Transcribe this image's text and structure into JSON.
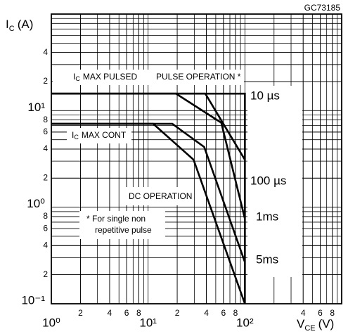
{
  "chart_data": {
    "type": "line",
    "code": "GC73185",
    "y_label": {
      "symbol": "I",
      "subscript": "C",
      "unit": "(A)"
    },
    "x_label": {
      "symbol": "V",
      "subscript": "CE",
      "unit": "(V)"
    },
    "log_x": true,
    "log_y": true,
    "minor_grid": true,
    "xlim": [
      1,
      1000
    ],
    "ylim": [
      0.1,
      100
    ],
    "xticks": [
      {
        "value": 1,
        "label": "10⁰"
      },
      2,
      4,
      6,
      8,
      {
        "value": 10,
        "label": "10¹"
      },
      {
        "value": 20,
        "label": "2"
      },
      {
        "value": 40,
        "label": "4"
      },
      {
        "value": 60,
        "label": "6"
      },
      {
        "value": 80,
        "label": "8"
      },
      {
        "value": 100,
        "label": "10²"
      },
      {
        "value": 400,
        "label": "4"
      },
      {
        "value": 600,
        "label": "6"
      },
      {
        "value": 800,
        "label": "8"
      }
    ],
    "yticks": [
      {
        "value": 0.1,
        "label": "10⁻¹"
      },
      {
        "value": 0.2,
        "label": "2"
      },
      {
        "value": 0.4,
        "label": "4"
      },
      {
        "value": 0.6,
        "label": "6"
      },
      {
        "value": 0.8,
        "label": "8"
      },
      {
        "value": 1,
        "label": "10⁰"
      },
      2,
      4,
      6,
      8,
      {
        "value": 10,
        "label": "10¹"
      },
      {
        "value": 20,
        "label": "2"
      },
      {
        "value": 40,
        "label": "4"
      }
    ],
    "annotations": [
      "PULSE OPERATION *",
      "* For single non",
      "repetitive pulse"
    ],
    "limit_labels": [
      {
        "symbol": "I",
        "subscript": "C",
        "text": "MAX PULSED"
      },
      {
        "symbol": "I",
        "subscript": "C",
        "text": "MAX CONT"
      }
    ],
    "series": [
      {
        "name": "10 µs",
        "x": [
          1,
          100,
          100
        ],
        "values": [
          15,
          15,
          0.1
        ]
      },
      {
        "name": "100 µs",
        "x": [
          1,
          39,
          100
        ],
        "values": [
          15,
          15,
          3.1
        ]
      },
      {
        "name": "1ms",
        "x": [
          1,
          19.4,
          57,
          100
        ],
        "values": [
          15,
          15,
          7.5,
          0.76
        ]
      },
      {
        "name": "5ms",
        "x": [
          1,
          17.8,
          38,
          100
        ],
        "values": [
          7.3,
          7.3,
          4.2,
          0.27
        ]
      },
      {
        "name": "DC OPERATION",
        "x": [
          1,
          11.3,
          29.5,
          100
        ],
        "values": [
          7.3,
          7.3,
          3.1,
          0.1
        ]
      }
    ]
  }
}
